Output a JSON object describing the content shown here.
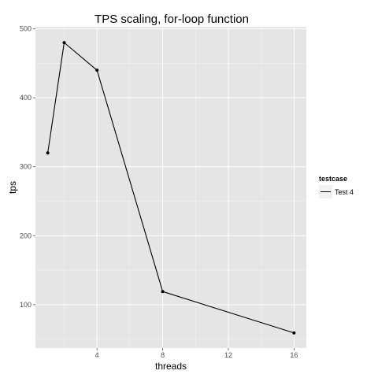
{
  "chart_data": {
    "type": "line",
    "title": "TPS scaling, for-loop function",
    "xlabel": "threads",
    "ylabel": "tps",
    "xlim": [
      0.25,
      16.75
    ],
    "ylim": [
      37,
      503
    ],
    "x_ticks": [
      4,
      8,
      12,
      16
    ],
    "y_ticks": [
      100,
      200,
      300,
      400,
      500
    ],
    "grid": true,
    "legend": {
      "title": "testcase",
      "position": "right"
    },
    "series": [
      {
        "name": "Test 4",
        "color": "#000000",
        "x": [
          1,
          2,
          4,
          8,
          16
        ],
        "y": [
          320,
          480,
          440,
          119,
          59
        ]
      }
    ]
  },
  "colors": {
    "panel_background": "#e5e5e5",
    "grid_major": "#ffffff",
    "grid_minor": "#f2f2f2",
    "line": "#000000",
    "tick_label": "#4d4d4d"
  }
}
